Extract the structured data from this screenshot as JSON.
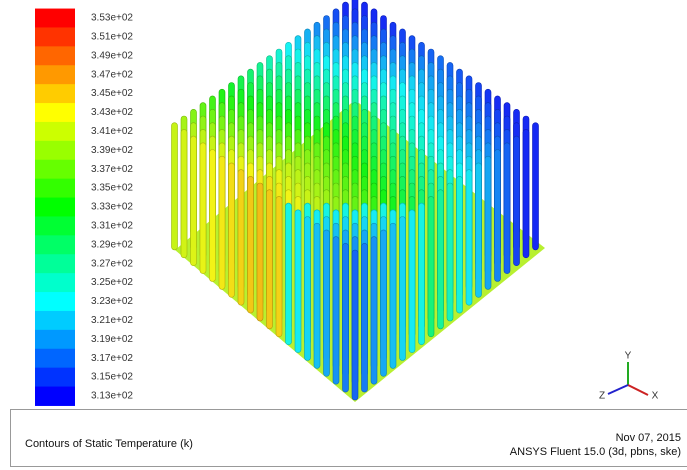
{
  "legend": {
    "labels": [
      "3.53e+02",
      "3.51e+02",
      "3.49e+02",
      "3.47e+02",
      "3.45e+02",
      "3.43e+02",
      "3.41e+02",
      "3.39e+02",
      "3.37e+02",
      "3.35e+02",
      "3.33e+02",
      "3.31e+02",
      "3.29e+02",
      "3.27e+02",
      "3.25e+02",
      "3.23e+02",
      "3.21e+02",
      "3.19e+02",
      "3.17e+02",
      "3.15e+02",
      "3.13e+02"
    ]
  },
  "triad": {
    "x": "X",
    "y": "Y",
    "z": "Z"
  },
  "footer": {
    "title": "Contours of Static Temperature (k)",
    "date": "Nov 07, 2015",
    "version": "ANSYS Fluent 15.0 (3d, pbns, ske)"
  }
}
